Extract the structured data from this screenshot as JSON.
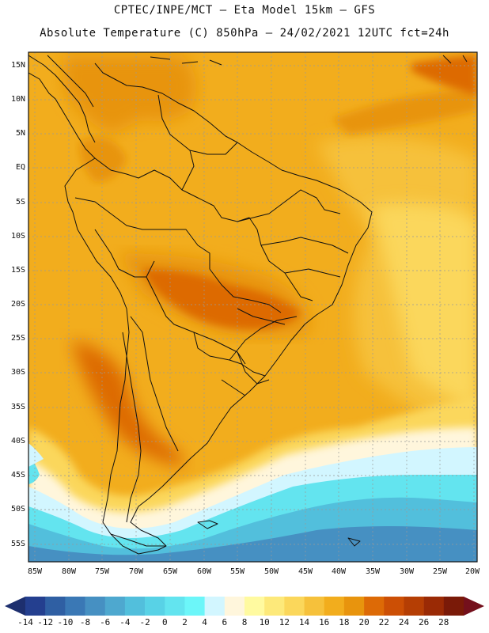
{
  "header": {
    "line1": "CPTEC/INPE/MCT –  Eta Model 15km – GFS",
    "line2": "Absolute Temperature (C) 850hPa – 24/02/2021 12UTC fct=24h"
  },
  "map": {
    "latitudes": [
      "15N",
      "10N",
      "5N",
      "EQ",
      "5S",
      "10S",
      "15S",
      "20S",
      "25S",
      "30S",
      "35S",
      "40S",
      "45S",
      "50S",
      "55S"
    ],
    "longitudes": [
      "85W",
      "80W",
      "75W",
      "70W",
      "65W",
      "60W",
      "55W",
      "50W",
      "45W",
      "40W",
      "35W",
      "30W",
      "25W",
      "20W"
    ]
  },
  "colorbar": {
    "labels": [
      "-14",
      "-12",
      "-10",
      "-8",
      "-6",
      "-4",
      "-2",
      "0",
      "2",
      "4",
      "6",
      "8",
      "10",
      "12",
      "14",
      "16",
      "18",
      "20",
      "22",
      "24",
      "26",
      "28"
    ],
    "colors": [
      "#243f8f",
      "#2f5fa3",
      "#3a78b5",
      "#4690c2",
      "#4ea8cf",
      "#52bfdc",
      "#58d2e6",
      "#63e4ef",
      "#6cf6f9",
      "#d2f6ff",
      "#fff6dc",
      "#fffaa0",
      "#fde97a",
      "#fbd75b",
      "#f6c13b",
      "#f2ad1d",
      "#e8940d",
      "#dd6a06",
      "#cc4f05",
      "#b53e04",
      "#9a2a05",
      "#7a1a08"
    ],
    "under_color": "#1d2f6e",
    "over_color": "#74101c"
  }
}
